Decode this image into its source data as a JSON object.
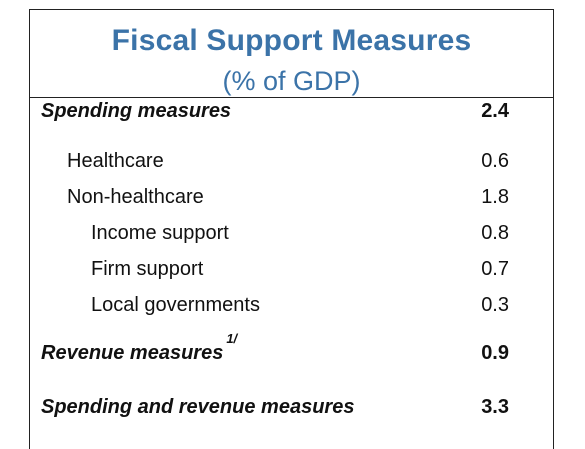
{
  "table": {
    "title": "Fiscal Support Measures",
    "subtitle": "(% of GDP)",
    "rows": [
      {
        "label": "Spending measures",
        "value": "2.4"
      },
      {
        "label": "Healthcare",
        "value": "0.6"
      },
      {
        "label": "Non-healthcare",
        "value": "1.8"
      },
      {
        "label": "Income support",
        "value": "0.8"
      },
      {
        "label": "Firm support",
        "value": "0.7"
      },
      {
        "label": "Local governments",
        "value": "0.3"
      },
      {
        "label": "Revenue measures",
        "footnote": "1/",
        "value": "0.9"
      },
      {
        "label": "Spending and revenue measures",
        "value": "3.3"
      }
    ]
  }
}
